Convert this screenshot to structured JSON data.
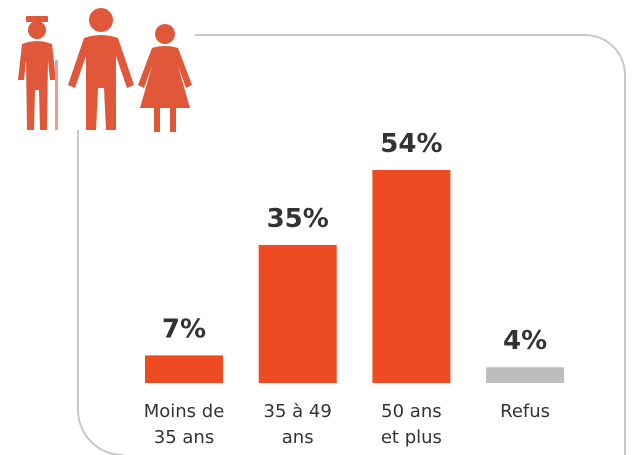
{
  "chart_data": {
    "type": "bar",
    "categories": [
      "Moins de\n35 ans",
      "35 à 49\nans",
      "50 ans\net plus",
      "Refus"
    ],
    "values": [
      7,
      35,
      54,
      4
    ],
    "value_labels": [
      "7%",
      "35%",
      "54%",
      "4%"
    ],
    "colors": [
      "#ee4b22",
      "#ee4b22",
      "#ee4b22",
      "#bdbdbd"
    ]
  }
}
